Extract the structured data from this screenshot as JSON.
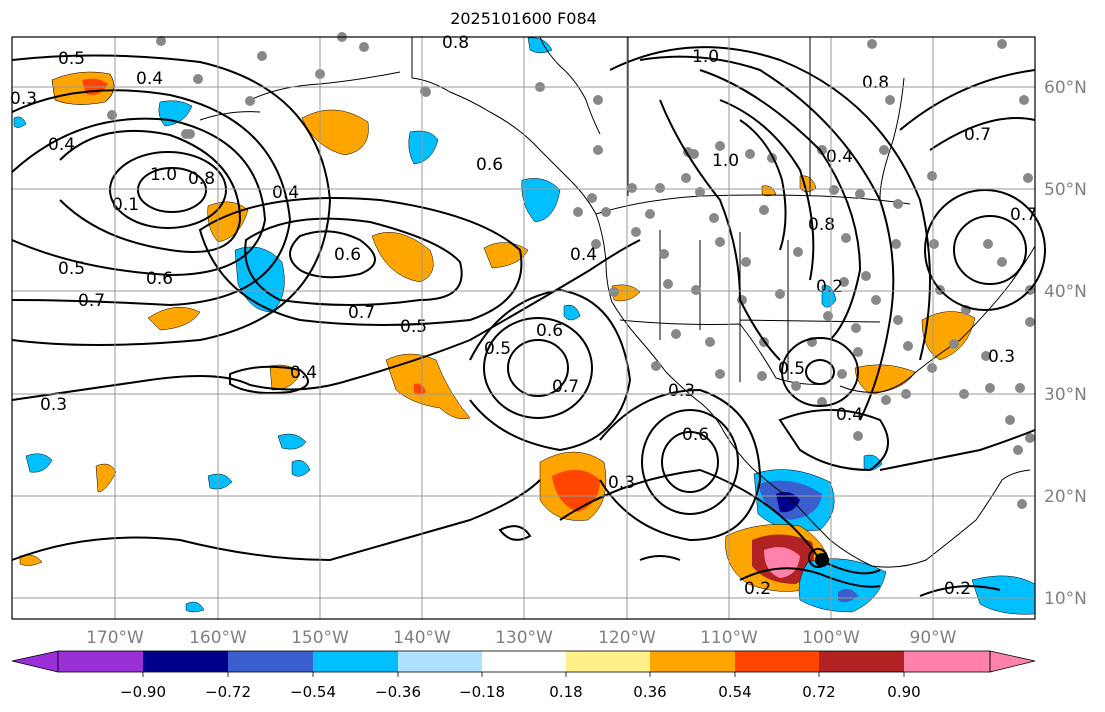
{
  "title": "2025101600 F084",
  "axes": {
    "lon_labels": [
      "170°W",
      "160°W",
      "150°W",
      "140°W",
      "130°W",
      "120°W",
      "110°W",
      "100°W",
      "90°W"
    ],
    "lat_labels": [
      "60°N",
      "50°N",
      "40°N",
      "30°N",
      "20°N",
      "10°N"
    ]
  },
  "colorbar": {
    "ticks": [
      "−0.90",
      "−0.72",
      "−0.54",
      "−0.36",
      "−0.18",
      "0.18",
      "0.36",
      "0.54",
      "0.72",
      "0.90"
    ],
    "colors": [
      "#9b30d9",
      "#00008b",
      "#3a5fcd",
      "#00bfff",
      "#b0e2ff",
      "#ffffff",
      "#fff08a",
      "#ffa500",
      "#ff4500",
      "#b22222",
      "#ff82ab"
    ]
  },
  "contour_labels": [
    {
      "text": "0.5"
    },
    {
      "text": "0.4"
    },
    {
      "text": "0.3"
    },
    {
      "text": "0.4"
    },
    {
      "text": "1.0"
    },
    {
      "text": "0.8"
    },
    {
      "text": "0.1"
    },
    {
      "text": "0.5"
    },
    {
      "text": "0.6"
    },
    {
      "text": "0.7"
    },
    {
      "text": "0.4"
    },
    {
      "text": "0.6"
    },
    {
      "text": "0.7"
    },
    {
      "text": "0.5"
    },
    {
      "text": "0.4"
    },
    {
      "text": "0.3"
    },
    {
      "text": "0.8"
    },
    {
      "text": "1.0"
    },
    {
      "text": "0.8"
    },
    {
      "text": "0.7"
    },
    {
      "text": "0.4"
    },
    {
      "text": "1.0"
    },
    {
      "text": "0.6"
    },
    {
      "text": "0.4"
    },
    {
      "text": "0.5"
    },
    {
      "text": "0.6"
    },
    {
      "text": "0.7"
    },
    {
      "text": "0.3"
    },
    {
      "text": "0.6"
    },
    {
      "text": "0.3"
    },
    {
      "text": "0.2"
    },
    {
      "text": "0.2"
    },
    {
      "text": "0.5"
    },
    {
      "text": "0.4"
    },
    {
      "text": "0.3"
    },
    {
      "text": "0.2"
    },
    {
      "text": "0.7"
    },
    {
      "text": "0.8"
    }
  ]
}
